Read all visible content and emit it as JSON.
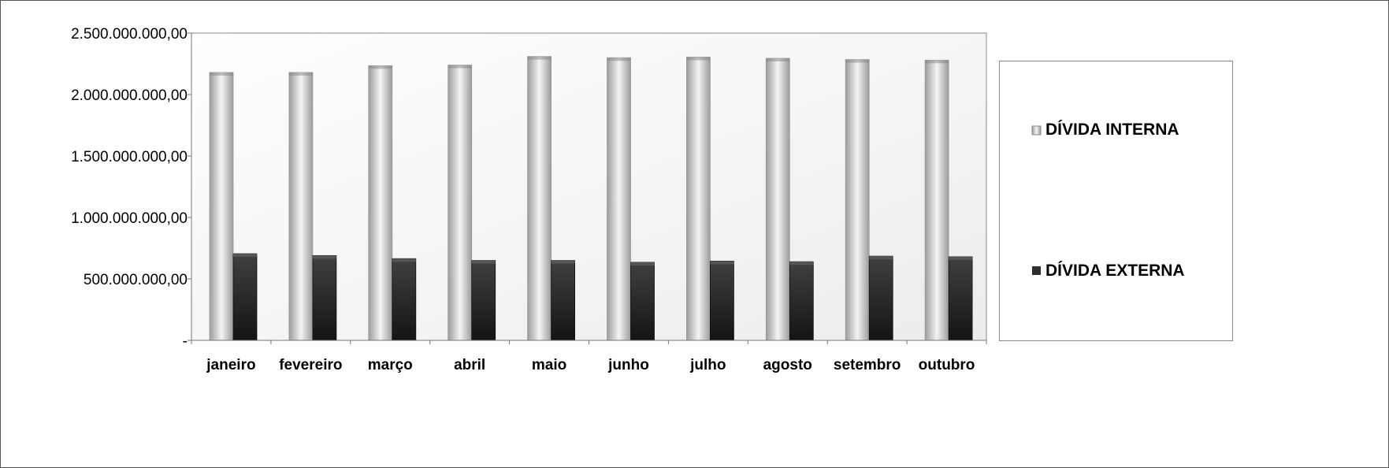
{
  "chart_data": {
    "type": "bar",
    "title": "",
    "xlabel": "",
    "ylabel": "",
    "categories": [
      "janeiro",
      "fevereiro",
      "março",
      "abril",
      "maio",
      "junho",
      "julho",
      "agosto",
      "setembro",
      "outubro"
    ],
    "series": [
      {
        "name": "DÍVIDA INTERNA",
        "color": "#c8c8c8",
        "values": [
          2180000000,
          2180000000,
          2235000000,
          2240000000,
          2310000000,
          2300000000,
          2305000000,
          2295000000,
          2285000000,
          2280000000
        ]
      },
      {
        "name": "DÍVIDA EXTERNA",
        "color": "#2e2e2e",
        "values": [
          705000000,
          690000000,
          665000000,
          650000000,
          650000000,
          635000000,
          645000000,
          640000000,
          685000000,
          680000000
        ]
      }
    ],
    "ylim": [
      0,
      2500000000
    ],
    "yticks": [
      0,
      500000000,
      1000000000,
      1500000000,
      2000000000,
      2500000000
    ],
    "ytick_labels": [
      "-",
      "500.000.000,00",
      "1.000.000.000,00",
      "1.500.000.000,00",
      "2.000.000.000,00",
      "2.500.000.000,00"
    ],
    "grid": false,
    "legend_position": "right"
  }
}
